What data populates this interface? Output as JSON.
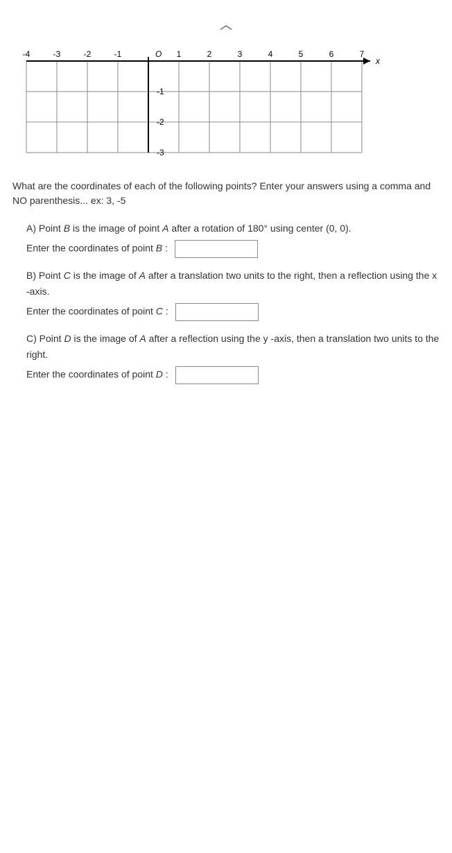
{
  "graph": {
    "xmin": -4,
    "xmax": 7,
    "ymin": -3,
    "ymax": 0,
    "xticks": [
      -4,
      -3,
      -2,
      -1,
      1,
      2,
      3,
      4,
      5,
      6,
      7
    ],
    "yticks": [
      -1,
      -2,
      -3
    ],
    "cell_size": 44,
    "axis_color": "#000000",
    "grid_color": "#888888",
    "tick_font_size": 12,
    "background": "#ffffff",
    "x_axis_label": "x",
    "origin_label": "O"
  },
  "prompt": "What are the coordinates of each of the following points? Enter your answers using a comma and NO parenthesis... ex: 3, -5",
  "parts": {
    "a": {
      "text_prefix": "A) Point ",
      "point": "B",
      "text_mid": " is the image of point ",
      "src_point": "A",
      "text_suffix": " after a rotation of 180° using center (0, 0).",
      "enter_prefix": "Enter the coordinates of point ",
      "enter_point": "B",
      "enter_suffix": " :"
    },
    "b": {
      "text_prefix": "B) Point ",
      "point": "C",
      "text_mid": " is the image of ",
      "src_point": "A",
      "text_suffix": " after a translation two units to the right, then a reflection using the x -axis.",
      "enter_prefix": "Enter the coordinates of point ",
      "enter_point": "C",
      "enter_suffix": " :"
    },
    "c": {
      "text_prefix": "C) Point ",
      "point": "D",
      "text_mid": " is the image of ",
      "src_point": "A",
      "text_suffix": " after a reflection using the y -axis, then a translation two units to the right.",
      "enter_prefix": "Enter the coordinates of point ",
      "enter_point": "D",
      "enter_suffix": " :"
    }
  }
}
